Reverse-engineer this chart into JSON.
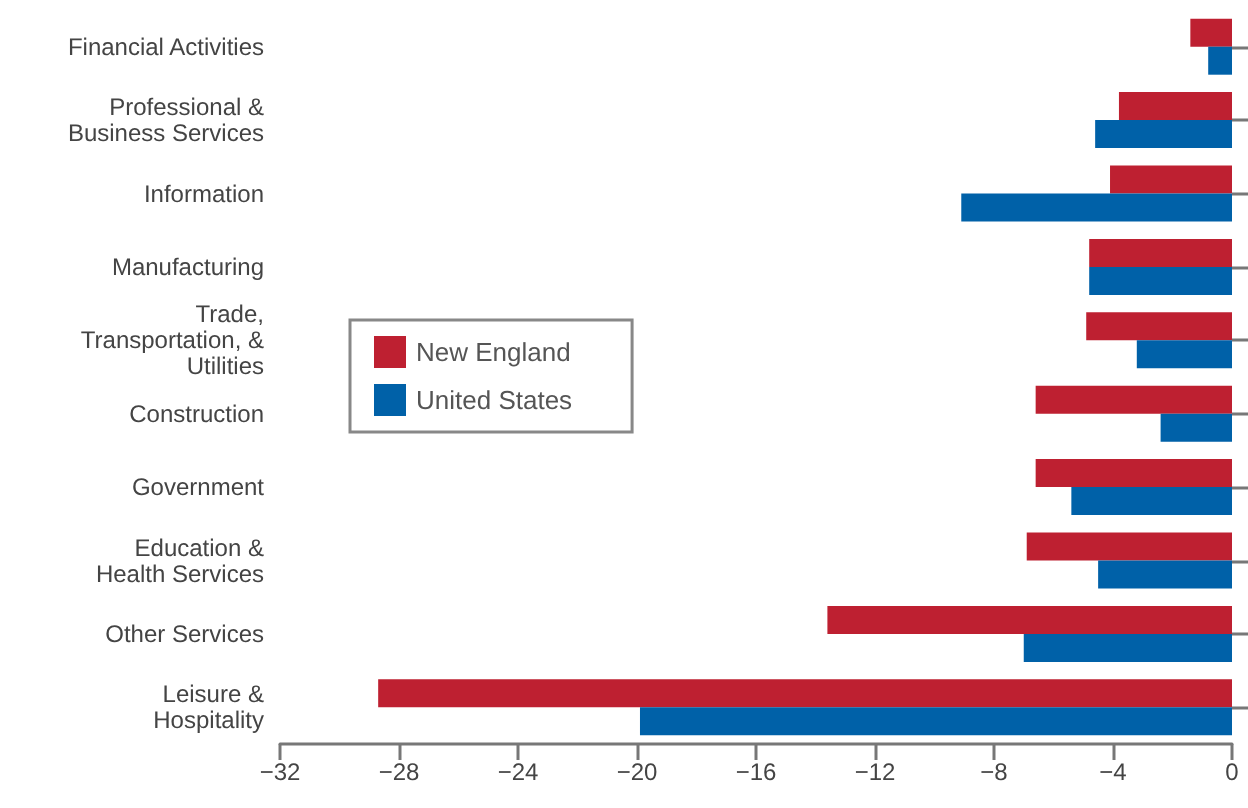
{
  "chart_data": {
    "type": "bar",
    "orientation": "horizontal",
    "categories": [
      "Financial Activities",
      "Professional &\nBusiness Services",
      "Information",
      "Manufacturing",
      "Trade,\nTransportation, &\nUtilities",
      "Construction",
      "Government",
      "Education &\nHealth Services",
      "Other Services",
      "Leisure &\nHospitality"
    ],
    "series": [
      {
        "name": "New England",
        "color": "#be2031",
        "values": [
          -1.4,
          -3.8,
          -4.1,
          -4.8,
          -4.9,
          -6.6,
          -6.6,
          -6.9,
          -13.6,
          -28.7
        ]
      },
      {
        "name": "United States",
        "color": "#0061a8",
        "values": [
          -0.8,
          -4.6,
          -9.1,
          -4.8,
          -3.2,
          -2.4,
          -5.4,
          -4.5,
          -7.0,
          -19.9
        ]
      }
    ],
    "xlim": [
      -32,
      0
    ],
    "xticks": [
      {
        "value": -32,
        "label": "−32"
      },
      {
        "value": -28,
        "label": "−28"
      },
      {
        "value": -24,
        "label": "−24"
      },
      {
        "value": -20,
        "label": "−20"
      },
      {
        "value": -16,
        "label": "−16"
      },
      {
        "value": -12,
        "label": "−12"
      },
      {
        "value": -8,
        "label": "−8"
      },
      {
        "value": -4,
        "label": "−4"
      },
      0
    ],
    "legend": "left",
    "grid": false
  }
}
